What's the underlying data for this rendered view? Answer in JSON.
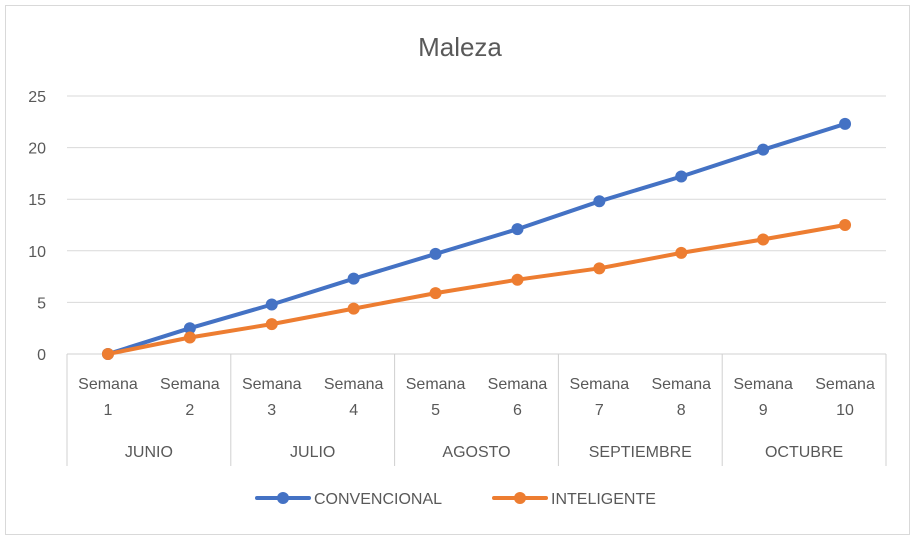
{
  "chart_data": {
    "type": "line",
    "title": "Maleza",
    "xlabel": "",
    "ylabel": "",
    "ylim": [
      0,
      25
    ],
    "yticks": [
      "0",
      "5",
      "10",
      "15",
      "20",
      "25"
    ],
    "weeks": [
      [
        "Semana",
        "1"
      ],
      [
        "Semana",
        "2"
      ],
      [
        "Semana",
        "3"
      ],
      [
        "Semana",
        "4"
      ],
      [
        "Semana",
        "5"
      ],
      [
        "Semana",
        "6"
      ],
      [
        "Semana",
        "7"
      ],
      [
        "Semana",
        "8"
      ],
      [
        "Semana",
        "9"
      ],
      [
        "Semana",
        "10"
      ]
    ],
    "months": [
      "JUNIO",
      "JULIO",
      "AGOSTO",
      "SEPTIEMBRE",
      "OCTUBRE"
    ],
    "grid": true,
    "legend_position": "bottom",
    "series": [
      {
        "name": "CONVENCIONAL",
        "color": "#4472c4",
        "values": [
          0,
          2.5,
          4.8,
          7.3,
          9.7,
          12.1,
          14.8,
          17.2,
          19.8,
          22.3
        ]
      },
      {
        "name": "INTELIGENTE",
        "color": "#ed7d31",
        "values": [
          0,
          1.6,
          2.9,
          4.4,
          5.9,
          7.2,
          8.3,
          9.8,
          11.1,
          12.5
        ]
      }
    ]
  }
}
